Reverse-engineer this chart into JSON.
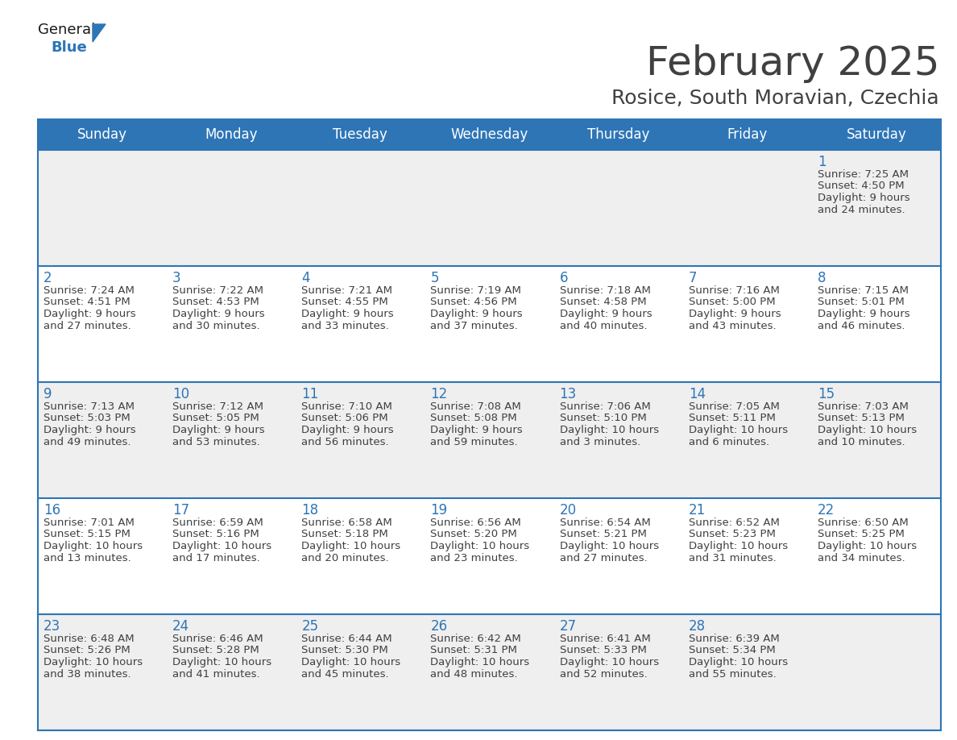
{
  "title": "February 2025",
  "subtitle": "Rosice, South Moravian, Czechia",
  "header_color": "#2E75B6",
  "header_text_color": "#FFFFFF",
  "day_names": [
    "Sunday",
    "Monday",
    "Tuesday",
    "Wednesday",
    "Thursday",
    "Friday",
    "Saturday"
  ],
  "background_color": "#FFFFFF",
  "row0_color": "#EFEFEF",
  "row1_color": "#FFFFFF",
  "cell_text_color": "#404040",
  "date_number_color": "#2E75B6",
  "calendar_data": [
    [
      null,
      null,
      null,
      null,
      null,
      null,
      {
        "day": "1",
        "sunrise": "7:25 AM",
        "sunset": "4:50 PM",
        "daylight": "9 hours",
        "daylight2": "and 24 minutes."
      }
    ],
    [
      {
        "day": "2",
        "sunrise": "7:24 AM",
        "sunset": "4:51 PM",
        "daylight": "9 hours",
        "daylight2": "and 27 minutes."
      },
      {
        "day": "3",
        "sunrise": "7:22 AM",
        "sunset": "4:53 PM",
        "daylight": "9 hours",
        "daylight2": "and 30 minutes."
      },
      {
        "day": "4",
        "sunrise": "7:21 AM",
        "sunset": "4:55 PM",
        "daylight": "9 hours",
        "daylight2": "and 33 minutes."
      },
      {
        "day": "5",
        "sunrise": "7:19 AM",
        "sunset": "4:56 PM",
        "daylight": "9 hours",
        "daylight2": "and 37 minutes."
      },
      {
        "day": "6",
        "sunrise": "7:18 AM",
        "sunset": "4:58 PM",
        "daylight": "9 hours",
        "daylight2": "and 40 minutes."
      },
      {
        "day": "7",
        "sunrise": "7:16 AM",
        "sunset": "5:00 PM",
        "daylight": "9 hours",
        "daylight2": "and 43 minutes."
      },
      {
        "day": "8",
        "sunrise": "7:15 AM",
        "sunset": "5:01 PM",
        "daylight": "9 hours",
        "daylight2": "and 46 minutes."
      }
    ],
    [
      {
        "day": "9",
        "sunrise": "7:13 AM",
        "sunset": "5:03 PM",
        "daylight": "9 hours",
        "daylight2": "and 49 minutes."
      },
      {
        "day": "10",
        "sunrise": "7:12 AM",
        "sunset": "5:05 PM",
        "daylight": "9 hours",
        "daylight2": "and 53 minutes."
      },
      {
        "day": "11",
        "sunrise": "7:10 AM",
        "sunset": "5:06 PM",
        "daylight": "9 hours",
        "daylight2": "and 56 minutes."
      },
      {
        "day": "12",
        "sunrise": "7:08 AM",
        "sunset": "5:08 PM",
        "daylight": "9 hours",
        "daylight2": "and 59 minutes."
      },
      {
        "day": "13",
        "sunrise": "7:06 AM",
        "sunset": "5:10 PM",
        "daylight": "10 hours",
        "daylight2": "and 3 minutes."
      },
      {
        "day": "14",
        "sunrise": "7:05 AM",
        "sunset": "5:11 PM",
        "daylight": "10 hours",
        "daylight2": "and 6 minutes."
      },
      {
        "day": "15",
        "sunrise": "7:03 AM",
        "sunset": "5:13 PM",
        "daylight": "10 hours",
        "daylight2": "and 10 minutes."
      }
    ],
    [
      {
        "day": "16",
        "sunrise": "7:01 AM",
        "sunset": "5:15 PM",
        "daylight": "10 hours",
        "daylight2": "and 13 minutes."
      },
      {
        "day": "17",
        "sunrise": "6:59 AM",
        "sunset": "5:16 PM",
        "daylight": "10 hours",
        "daylight2": "and 17 minutes."
      },
      {
        "day": "18",
        "sunrise": "6:58 AM",
        "sunset": "5:18 PM",
        "daylight": "10 hours",
        "daylight2": "and 20 minutes."
      },
      {
        "day": "19",
        "sunrise": "6:56 AM",
        "sunset": "5:20 PM",
        "daylight": "10 hours",
        "daylight2": "and 23 minutes."
      },
      {
        "day": "20",
        "sunrise": "6:54 AM",
        "sunset": "5:21 PM",
        "daylight": "10 hours",
        "daylight2": "and 27 minutes."
      },
      {
        "day": "21",
        "sunrise": "6:52 AM",
        "sunset": "5:23 PM",
        "daylight": "10 hours",
        "daylight2": "and 31 minutes."
      },
      {
        "day": "22",
        "sunrise": "6:50 AM",
        "sunset": "5:25 PM",
        "daylight": "10 hours",
        "daylight2": "and 34 minutes."
      }
    ],
    [
      {
        "day": "23",
        "sunrise": "6:48 AM",
        "sunset": "5:26 PM",
        "daylight": "10 hours",
        "daylight2": "and 38 minutes."
      },
      {
        "day": "24",
        "sunrise": "6:46 AM",
        "sunset": "5:28 PM",
        "daylight": "10 hours",
        "daylight2": "and 41 minutes."
      },
      {
        "day": "25",
        "sunrise": "6:44 AM",
        "sunset": "5:30 PM",
        "daylight": "10 hours",
        "daylight2": "and 45 minutes."
      },
      {
        "day": "26",
        "sunrise": "6:42 AM",
        "sunset": "5:31 PM",
        "daylight": "10 hours",
        "daylight2": "and 48 minutes."
      },
      {
        "day": "27",
        "sunrise": "6:41 AM",
        "sunset": "5:33 PM",
        "daylight": "10 hours",
        "daylight2": "and 52 minutes."
      },
      {
        "day": "28",
        "sunrise": "6:39 AM",
        "sunset": "5:34 PM",
        "daylight": "10 hours",
        "daylight2": "and 55 minutes."
      },
      null
    ]
  ],
  "logo_text_general": "General",
  "logo_text_blue": "Blue",
  "logo_color_general": "#1a1a1a",
  "logo_color_blue": "#2E75B6",
  "logo_triangle_color": "#2E75B6",
  "title_fontsize": 36,
  "subtitle_fontsize": 18,
  "header_fontsize": 12,
  "day_number_fontsize": 12,
  "cell_fontsize": 9.5
}
